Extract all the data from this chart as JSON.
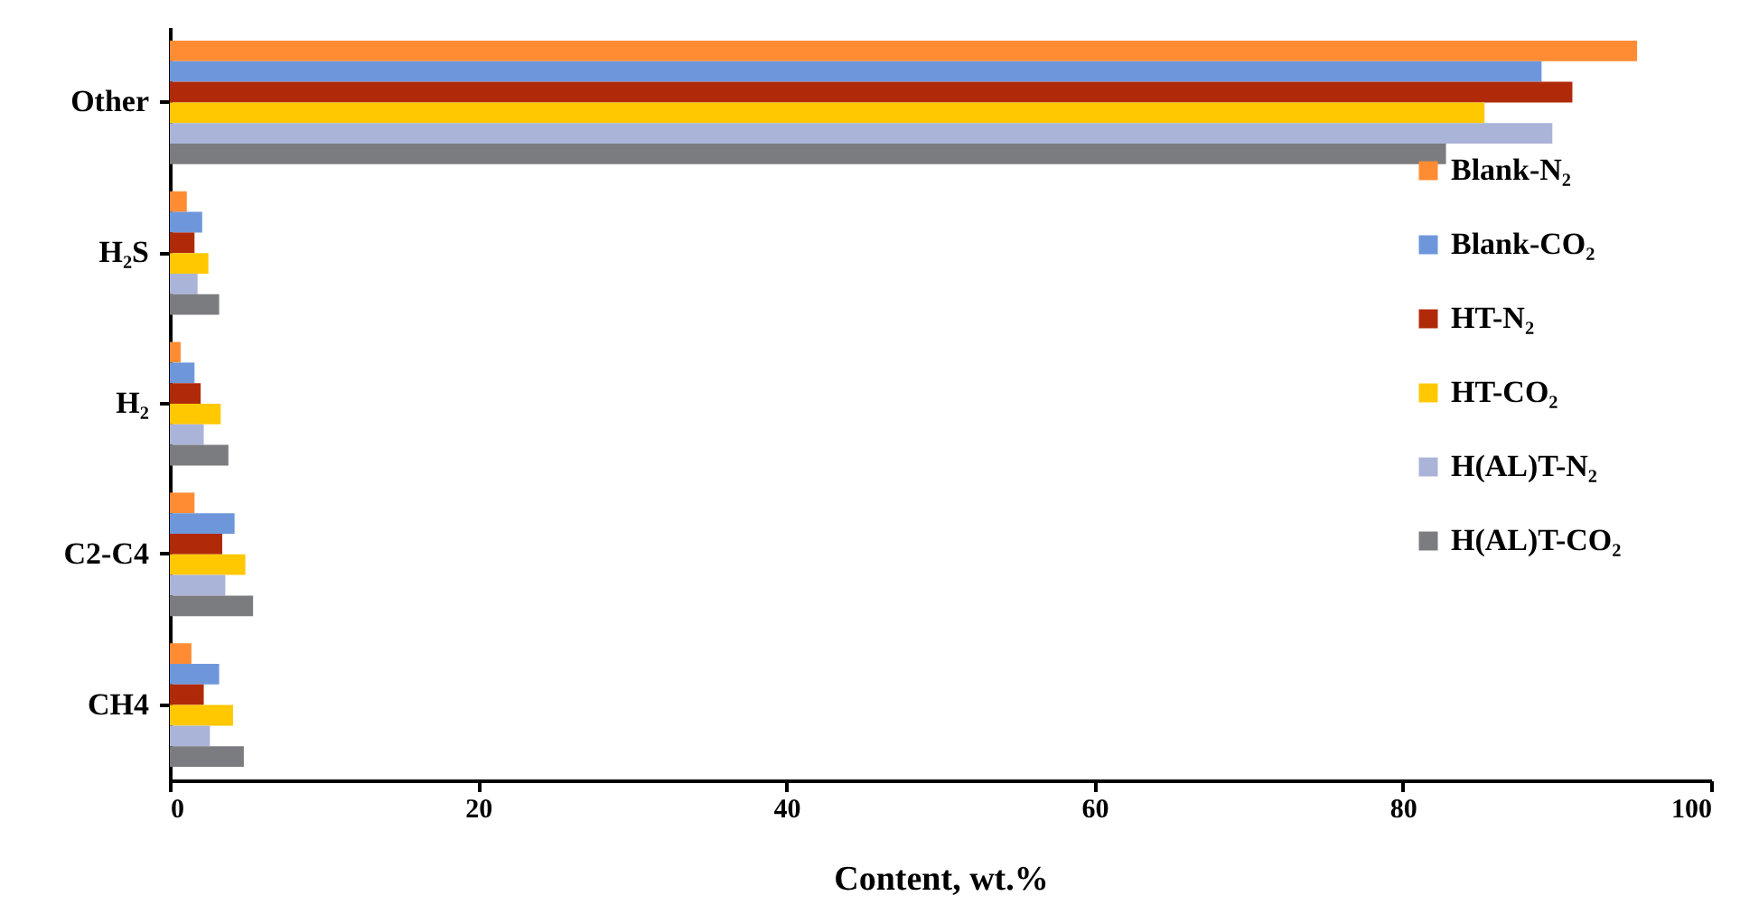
{
  "chart_data": {
    "type": "bar",
    "orientation": "horizontal",
    "xlabel": "Content, wt.%",
    "categories": [
      "Other",
      "H₂S",
      "H₂",
      "C2-C4",
      "CH4"
    ],
    "series": [
      {
        "name": "Blank-N₂",
        "color": "#ff8c33",
        "values": [
          95.2,
          1.1,
          0.7,
          1.6,
          1.4
        ]
      },
      {
        "name": "Blank-CO₂",
        "color": "#6e97db",
        "values": [
          89.0,
          2.1,
          1.6,
          4.2,
          3.2
        ]
      },
      {
        "name": "HT-N₂",
        "color": "#b02a0a",
        "values": [
          91.0,
          1.6,
          2.0,
          3.4,
          2.2
        ]
      },
      {
        "name": "HT-CO₂",
        "color": "#ffc800",
        "values": [
          85.3,
          2.5,
          3.3,
          4.9,
          4.1
        ]
      },
      {
        "name": "H(AL)T-N₂",
        "color": "#aab4d8",
        "values": [
          89.7,
          1.8,
          2.2,
          3.6,
          2.6
        ]
      },
      {
        "name": "H(AL)T-CO₂",
        "color": "#7a7c80",
        "values": [
          82.8,
          3.2,
          3.8,
          5.4,
          4.8
        ]
      }
    ],
    "xlim": [
      0,
      100
    ],
    "xticks": [
      0,
      20,
      40,
      60,
      80,
      100
    ],
    "legend": "right"
  }
}
